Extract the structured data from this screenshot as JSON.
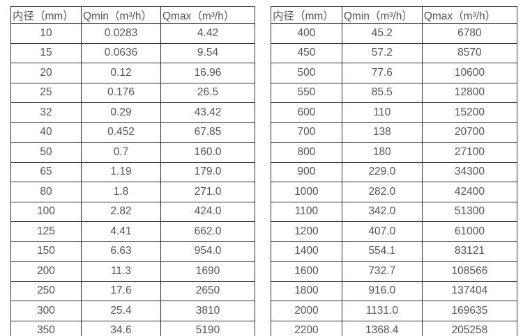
{
  "colors": {
    "border": "#333333",
    "text": "#555555",
    "background": "#ffffff"
  },
  "tables": [
    {
      "name": "flow-table-small-diameters",
      "headers": [
        "内径（mm）",
        "Qmin（m³/h）",
        "Qmax（m³/h）"
      ],
      "rows": [
        [
          "10",
          "0.0283",
          "4.42"
        ],
        [
          "15",
          "0.0636",
          "9.54"
        ],
        [
          "20",
          "0.12",
          "16.96"
        ],
        [
          "25",
          "0.176",
          "26.5"
        ],
        [
          "32",
          "0.29",
          "43.42"
        ],
        [
          "40",
          "0.452",
          "67.85"
        ],
        [
          "50",
          "0.7",
          "160.0"
        ],
        [
          "65",
          "1.19",
          "179.0"
        ],
        [
          "80",
          "1.8",
          "271.0"
        ],
        [
          "100",
          "2.82",
          "424.0"
        ],
        [
          "125",
          "4.41",
          "662.0"
        ],
        [
          "150",
          "6.63",
          "954.0"
        ],
        [
          "200",
          "11.3",
          "1690"
        ],
        [
          "250",
          "17.6",
          "2650"
        ],
        [
          "300",
          "25.4",
          "3810"
        ],
        [
          "350",
          "34.6",
          "5190"
        ]
      ]
    },
    {
      "name": "flow-table-large-diameters",
      "headers": [
        "内径（mm）",
        "Qmin（m³/h）",
        "Qmax（m³/h）"
      ],
      "rows": [
        [
          "400",
          "45.2",
          "6780"
        ],
        [
          "450",
          "57.2",
          "8570"
        ],
        [
          "500",
          "77.6",
          "10600"
        ],
        [
          "550",
          "85.5",
          "12800"
        ],
        [
          "600",
          "110",
          "15200"
        ],
        [
          "700",
          "138",
          "20700"
        ],
        [
          "800",
          "180",
          "27100"
        ],
        [
          "900",
          "229.0",
          "34300"
        ],
        [
          "1000",
          "282.0",
          "42400"
        ],
        [
          "1100",
          "342.0",
          "51300"
        ],
        [
          "1200",
          "407.0",
          "61000"
        ],
        [
          "1400",
          "554.1",
          "83121"
        ],
        [
          "1600",
          "732.7",
          "108566"
        ],
        [
          "1800",
          "916.0",
          "137404"
        ],
        [
          "2000",
          "1131.0",
          "169635"
        ],
        [
          "2200",
          "1368.4",
          "205258"
        ]
      ]
    }
  ]
}
